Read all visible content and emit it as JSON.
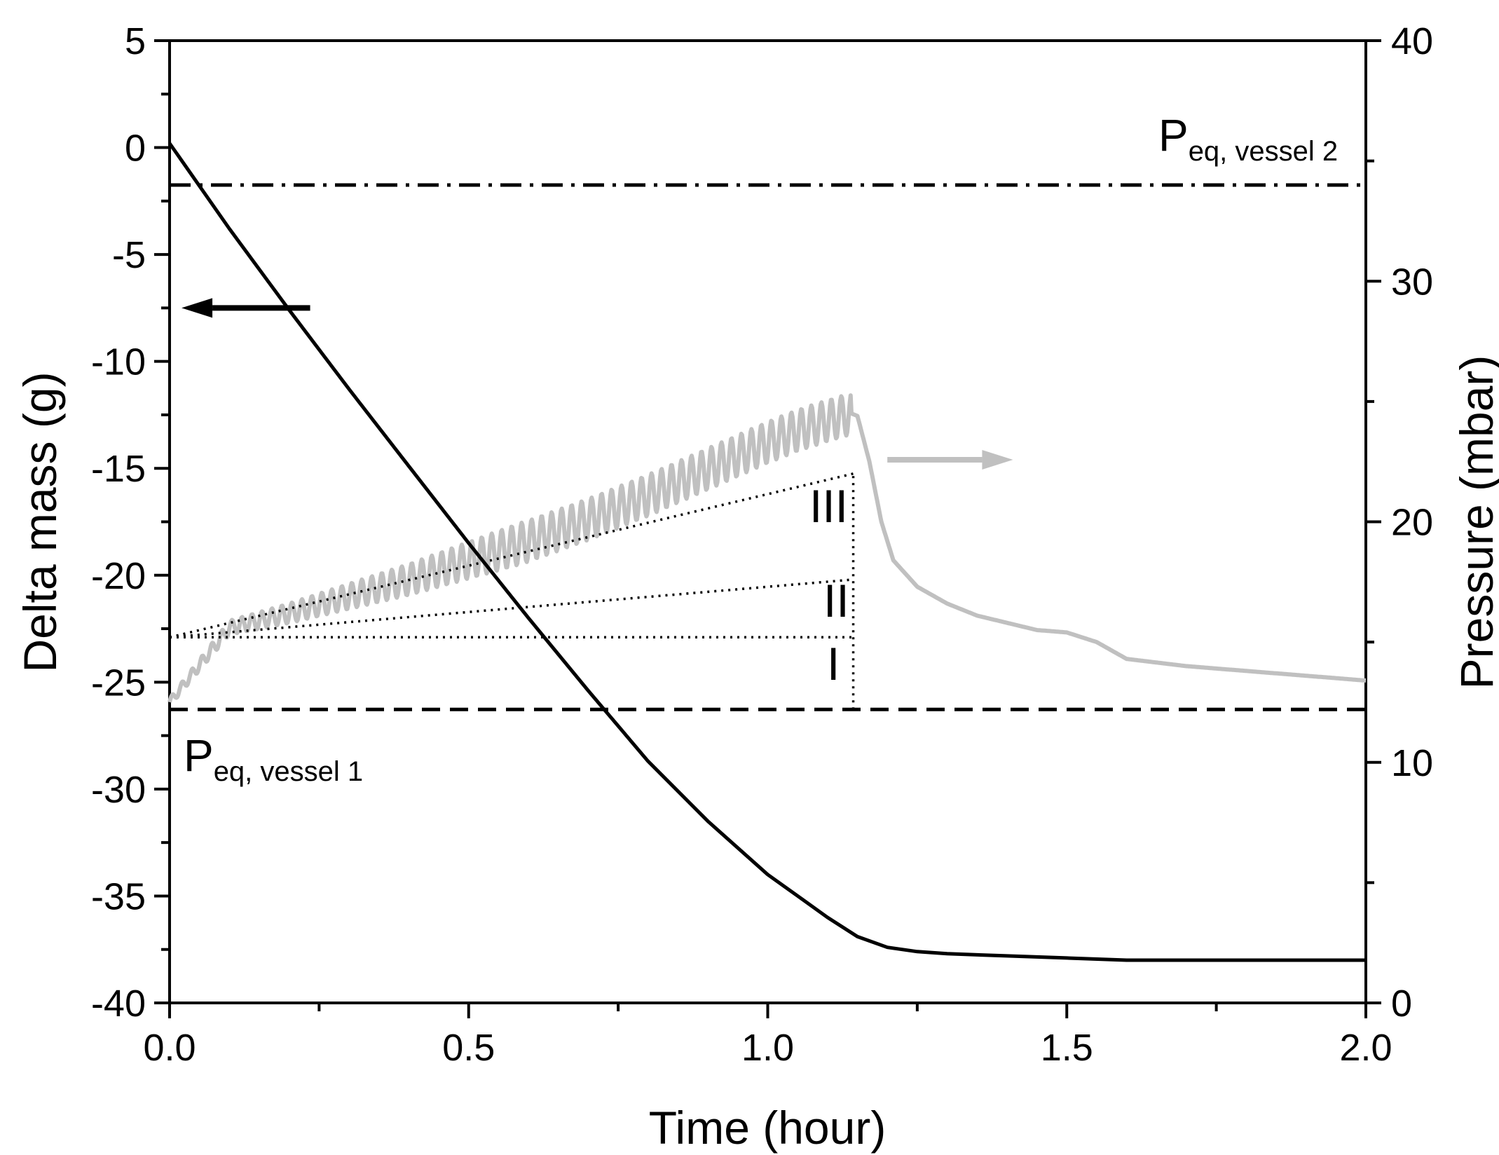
{
  "chart_data": {
    "type": "line",
    "title": "",
    "xlabel": "Time (hour)",
    "ylabel_left": "Delta mass (g)",
    "ylabel_right": "Pressure (mbar)",
    "xlim": [
      0.0,
      2.0
    ],
    "ylim_left": [
      -40,
      5
    ],
    "ylim_right": [
      0,
      40
    ],
    "x_ticks": [
      "0.0",
      "0.5",
      "1.0",
      "1.5",
      "2.0"
    ],
    "y_left_ticks": [
      "5",
      "0",
      "-5",
      "-10",
      "-15",
      "-20",
      "-25",
      "-30",
      "-35",
      "-40"
    ],
    "y_right_ticks": [
      "40",
      "30",
      "20",
      "10",
      "0"
    ],
    "grid": false,
    "series": [
      {
        "name": "Delta mass",
        "axis": "left",
        "color": "#000000",
        "style": "solid",
        "x": [
          0.0,
          0.1,
          0.2,
          0.3,
          0.4,
          0.5,
          0.6,
          0.7,
          0.8,
          0.9,
          1.0,
          1.05,
          1.1,
          1.15,
          1.2,
          1.25,
          1.3,
          1.4,
          1.5,
          1.6,
          1.7,
          1.8,
          1.9,
          2.0
        ],
        "values": [
          0.2,
          -3.8,
          -7.6,
          -11.3,
          -14.9,
          -18.5,
          -22.0,
          -25.4,
          -28.7,
          -31.5,
          -34.0,
          -35.0,
          -36.0,
          -36.9,
          -37.4,
          -37.6,
          -37.7,
          -37.8,
          -37.9,
          -38.0,
          -38.0,
          -38.0,
          -38.0,
          -38.0
        ]
      },
      {
        "name": "Pressure",
        "axis": "right",
        "color": "#c0c0c0",
        "style": "solid-oscillating",
        "x": [
          0.0,
          0.1,
          0.2,
          0.3,
          0.4,
          0.5,
          0.6,
          0.7,
          0.8,
          0.9,
          1.0,
          1.05,
          1.1,
          1.14,
          1.15,
          1.17,
          1.19,
          1.21,
          1.25,
          1.3,
          1.35,
          1.4,
          1.45,
          1.5,
          1.55,
          1.6,
          1.7,
          1.8,
          1.9,
          2.0
        ],
        "values": [
          12.5,
          15.6,
          16.2,
          16.9,
          17.6,
          18.4,
          19.2,
          20.1,
          21.1,
          22.2,
          23.3,
          23.8,
          24.2,
          24.5,
          24.4,
          22.5,
          20.0,
          18.4,
          17.3,
          16.6,
          16.1,
          15.8,
          15.5,
          15.4,
          15.0,
          14.3,
          14.0,
          13.8,
          13.6,
          13.4
        ]
      },
      {
        "name": "III",
        "axis": "right",
        "color": "#000000",
        "style": "dotted",
        "x": [
          0.0,
          1.143
        ],
        "values": [
          15.2,
          22.0
        ]
      },
      {
        "name": "II",
        "axis": "right",
        "color": "#000000",
        "style": "dotted",
        "x": [
          0.0,
          1.143
        ],
        "values": [
          15.2,
          17.6
        ]
      },
      {
        "name": "I",
        "axis": "right",
        "color": "#000000",
        "style": "dotted",
        "x": [
          0.0,
          1.143
        ],
        "values": [
          15.2,
          15.2
        ]
      },
      {
        "name": "P_eq, vessel 2",
        "axis": "right",
        "color": "#000000",
        "style": "dash-dot",
        "x": [
          0.0,
          2.0
        ],
        "values": [
          34.0,
          34.0
        ]
      },
      {
        "name": "P_eq, vessel 1",
        "axis": "right",
        "color": "#000000",
        "style": "dashed",
        "x": [
          0.0,
          2.0
        ],
        "values": [
          12.2,
          12.2
        ]
      }
    ],
    "oscillation": {
      "period_hour": 0.0167,
      "amplitude_mbar": 0.7,
      "until_hour": 1.14
    },
    "vertical_guide": {
      "x": 1.143,
      "axis": "right",
      "from": 12.2,
      "to": 22.0
    },
    "annotations": {
      "peq_vessel2": {
        "main": "P",
        "sub": "eq, vessel 2"
      },
      "peq_vessel1": {
        "main": "P",
        "sub": "eq, vessel 1"
      },
      "label_III": "III",
      "label_II": "II",
      "label_I": "I"
    },
    "axis_arrows": [
      {
        "name": "left-axis-arrow",
        "points_to": "left",
        "color": "#000000",
        "x_from": 0.235,
        "x_to": 0.02,
        "y_left": -7.5
      },
      {
        "name": "right-axis-arrow",
        "points_to": "right",
        "color": "#c0c0c0",
        "x_from": 1.2,
        "x_to": 1.41,
        "y_left": -14.6
      }
    ]
  }
}
